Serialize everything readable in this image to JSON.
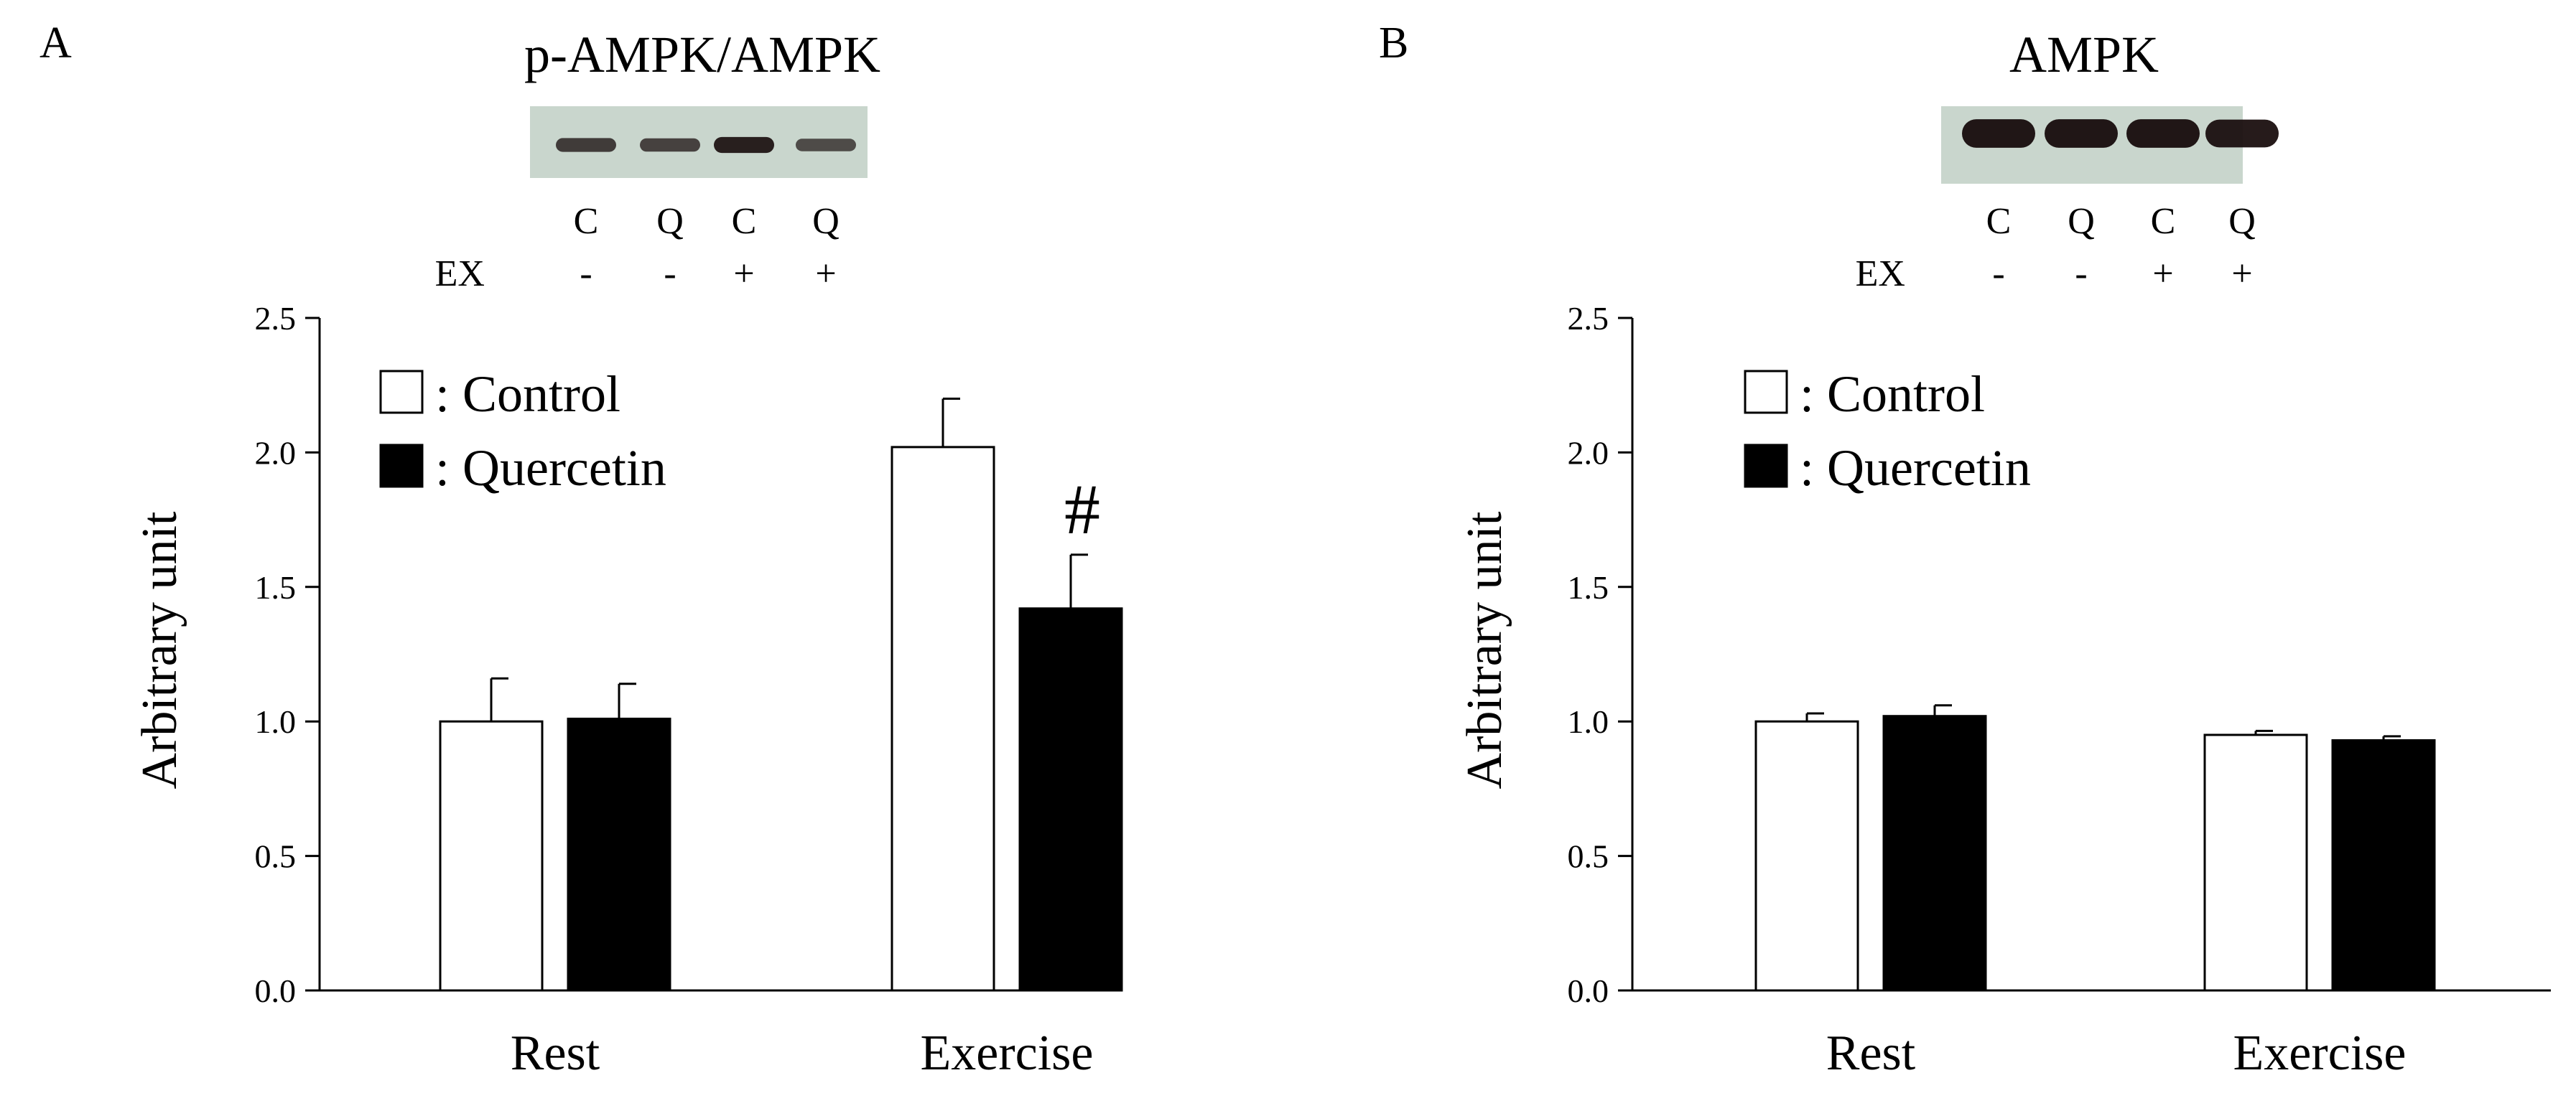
{
  "chart_data": [
    {
      "type": "bar",
      "panel": "A",
      "title": "p-AMPK/AMPK",
      "blot": {
        "lanes": [
          "C",
          "Q",
          "C",
          "Q"
        ],
        "ex_label": "EX",
        "ex_signs": [
          "-",
          "-",
          "+",
          "+"
        ],
        "band_intensity": [
          0.6,
          0.55,
          0.85,
          0.45
        ]
      },
      "categories": [
        "Rest",
        "Exercise"
      ],
      "series": [
        {
          "name": ": Control",
          "color": "#ffffff",
          "values": [
            1.0,
            2.02
          ],
          "errors": [
            0.16,
            0.18
          ]
        },
        {
          "name": ": Quercetin",
          "color": "#000000",
          "values": [
            1.01,
            1.42
          ],
          "errors": [
            0.13,
            0.2
          ]
        }
      ],
      "annotations": [
        {
          "text": "#",
          "category": "Exercise",
          "series": ": Quercetin"
        }
      ],
      "xlabel": "",
      "ylabel": "Arbitrary unit",
      "ylim": [
        0,
        2.5
      ],
      "yticks": [
        "0.0",
        "0.5",
        "1.0",
        "1.5",
        "2.0",
        "2.5"
      ],
      "legend": "top-left"
    },
    {
      "type": "bar",
      "panel": "B",
      "title": "AMPK",
      "blot": {
        "lanes": [
          "C",
          "Q",
          "C",
          "Q"
        ],
        "ex_label": "EX",
        "ex_signs": [
          "-",
          "-",
          "+",
          "+"
        ],
        "band_intensity": [
          0.95,
          0.95,
          0.95,
          0.9
        ]
      },
      "categories": [
        "Rest",
        "Exercise"
      ],
      "series": [
        {
          "name": ": Control",
          "color": "#ffffff",
          "values": [
            1.0,
            0.95
          ],
          "errors": [
            0.03,
            0.015
          ]
        },
        {
          "name": ": Quercetin",
          "color": "#000000",
          "values": [
            1.02,
            0.93
          ],
          "errors": [
            0.04,
            0.015
          ]
        }
      ],
      "annotations": [],
      "xlabel": "",
      "ylabel": "Arbitrary unit",
      "ylim": [
        0,
        2.5
      ],
      "yticks": [
        "0.0",
        "0.5",
        "1.0",
        "1.5",
        "2.0",
        "2.5"
      ],
      "legend": "top-left"
    }
  ]
}
